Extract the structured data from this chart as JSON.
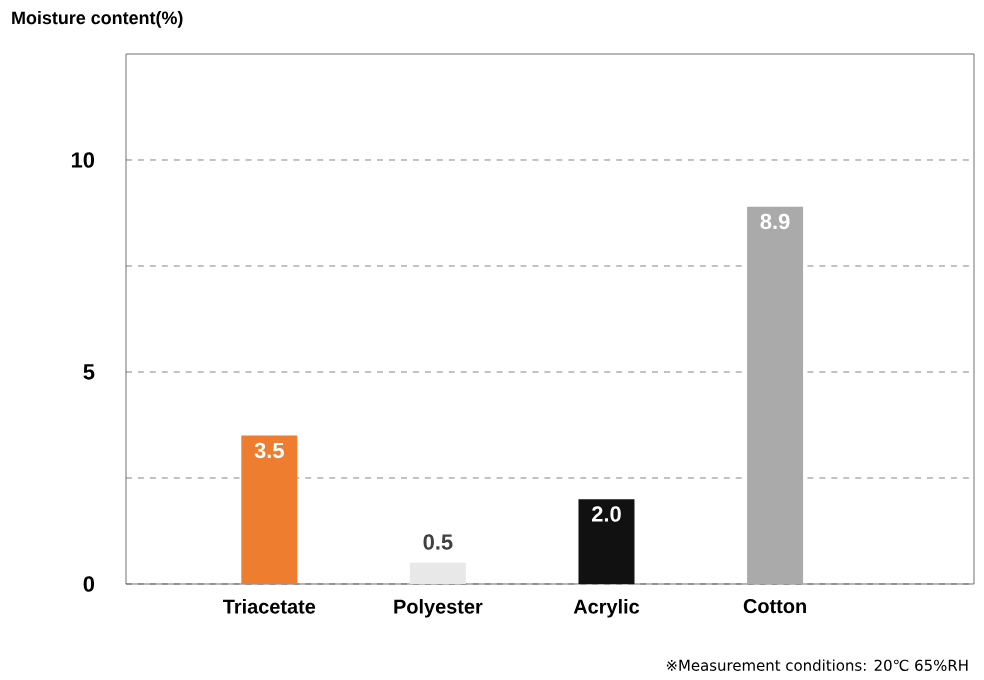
{
  "chart_data": {
    "type": "bar",
    "ylabel": "Moisture content(%)",
    "categories": [
      "Triacetate",
      "Polyester",
      "Acrylic",
      "Cotton"
    ],
    "values": [
      3.5,
      0.5,
      2.0,
      8.9
    ],
    "colors": [
      "#ef7d2f",
      "#e8e8e8",
      "#111111",
      "#aaaaaa"
    ],
    "ylim": [
      0,
      12.5
    ],
    "yticks": [
      0,
      {
        "value": 2.5,
        "label": null
      },
      5,
      {
        "value": 7.5,
        "label": null
      },
      10
    ],
    "value_labels": [
      "3.5",
      "0.5",
      "2.0",
      "8.9"
    ],
    "grid": "y",
    "annotations": [
      "※Measurement conditions: 20℃ 65%RH"
    ]
  }
}
